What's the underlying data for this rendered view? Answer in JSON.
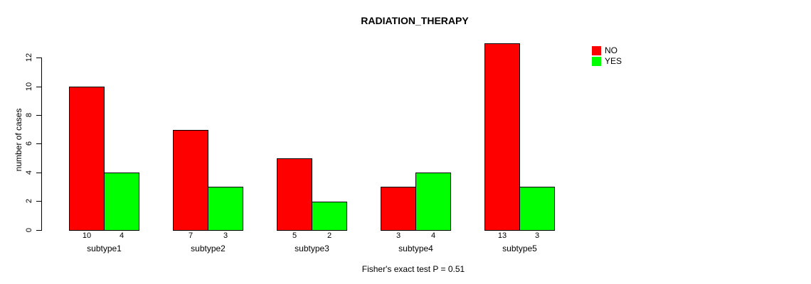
{
  "chart_data": {
    "type": "bar",
    "title": "RADIATION_THERAPY",
    "ylabel": "number of cases",
    "xlabel": "",
    "categories": [
      "subtype1",
      "subtype2",
      "subtype3",
      "subtype4",
      "subtype5"
    ],
    "series": [
      {
        "name": "NO",
        "color": "#FF0000",
        "values": [
          10,
          7,
          5,
          3,
          13
        ]
      },
      {
        "name": "YES",
        "color": "#00FF00",
        "values": [
          4,
          3,
          2,
          4,
          3
        ]
      }
    ],
    "bar_value_labels": [
      [
        "10",
        "4"
      ],
      [
        "7",
        "3"
      ],
      [
        "5",
        "2"
      ],
      [
        "3",
        "4"
      ],
      [
        "13",
        "3"
      ]
    ],
    "yticks": [
      0,
      2,
      4,
      6,
      8,
      10,
      12
    ],
    "ylim": [
      0,
      13
    ],
    "grid": false,
    "legend_position": "top-right",
    "annotation": "Fisher's exact test P = 0.51"
  }
}
